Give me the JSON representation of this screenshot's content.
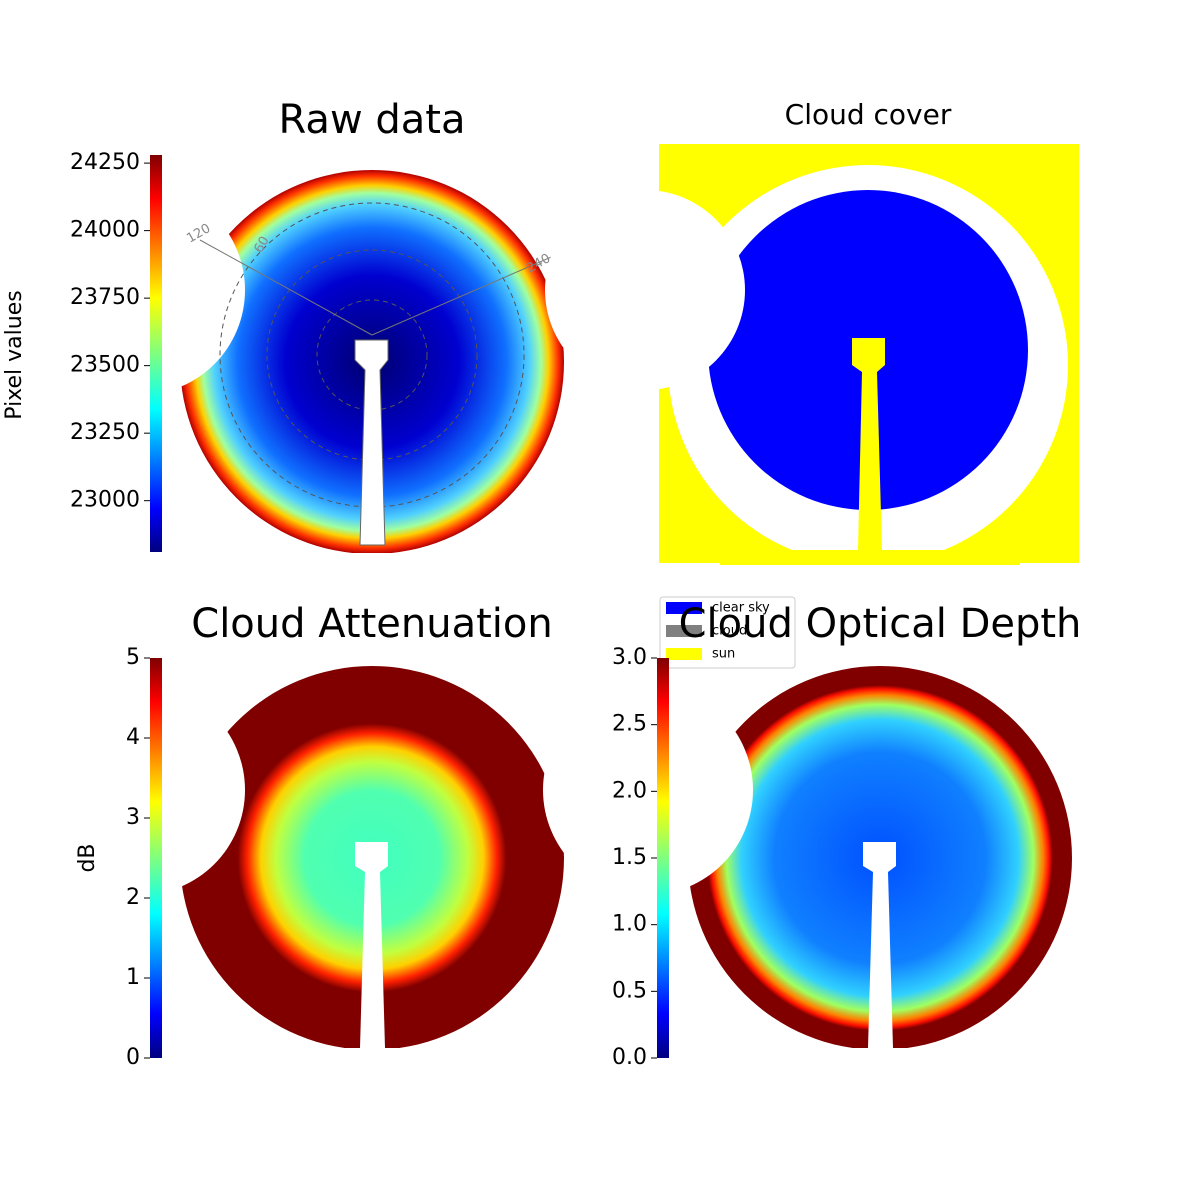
{
  "chart_data": [
    {
      "type": "image",
      "title": "Raw data",
      "colormap": "jet",
      "colorbar_label": "Pixel values",
      "ylim": [
        22810,
        24280
      ],
      "yticks": [
        23000,
        23250,
        23500,
        23750,
        24000,
        24250
      ],
      "annotations": [
        "120",
        "60",
        "240"
      ]
    },
    {
      "type": "image",
      "title": "Cloud cover",
      "series": [
        {
          "name": "clear sky",
          "color": "#0000ff"
        },
        {
          "name": "cloud",
          "color": "#808080"
        },
        {
          "name": "sun",
          "color": "#ffff00"
        }
      ]
    },
    {
      "type": "image",
      "title": "Cloud Attenuation",
      "colormap": "jet",
      "colorbar_label": "dB",
      "ylim": [
        0,
        5
      ],
      "yticks": [
        0,
        1,
        2,
        3,
        4,
        5
      ]
    },
    {
      "type": "image",
      "title": "Cloud Optical Depth",
      "colormap": "jet",
      "ylim": [
        0,
        3
      ],
      "yticks": [
        {
          "value": 0,
          "label": "0.0"
        },
        0.5,
        {
          "value": 1,
          "label": "1.0"
        },
        1.5,
        {
          "value": 2,
          "label": "2.0"
        },
        2.5,
        {
          "value": 3,
          "label": "3.0"
        }
      ]
    }
  ]
}
